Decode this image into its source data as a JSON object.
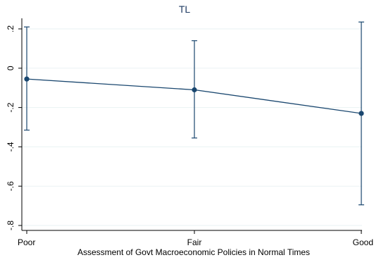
{
  "chart_data": {
    "type": "line",
    "title": "TL",
    "xlabel": "Assessment of Govt Macroeconomic Policies in Normal Times",
    "ylabel": "",
    "categories": [
      "Poor",
      "Fair",
      "Good"
    ],
    "series": [
      {
        "values": [
          -0.055,
          -0.11,
          -0.23
        ],
        "ci_low": [
          -0.315,
          -0.355,
          -0.695
        ],
        "ci_high": [
          0.21,
          0.14,
          0.235
        ]
      }
    ],
    "ylim": [
      -0.8,
      0.2
    ],
    "yticks": [
      ".2",
      "0",
      "-.2",
      "-.4",
      "-.6",
      "-.8"
    ],
    "ytick_values": [
      0.2,
      0,
      -0.2,
      -0.4,
      -0.6,
      -0.8
    ],
    "grid": true,
    "colors": {
      "series": "#1a476f",
      "grid": "#eaf2f3",
      "axis": "#000000",
      "title": "#1f3b63"
    }
  }
}
